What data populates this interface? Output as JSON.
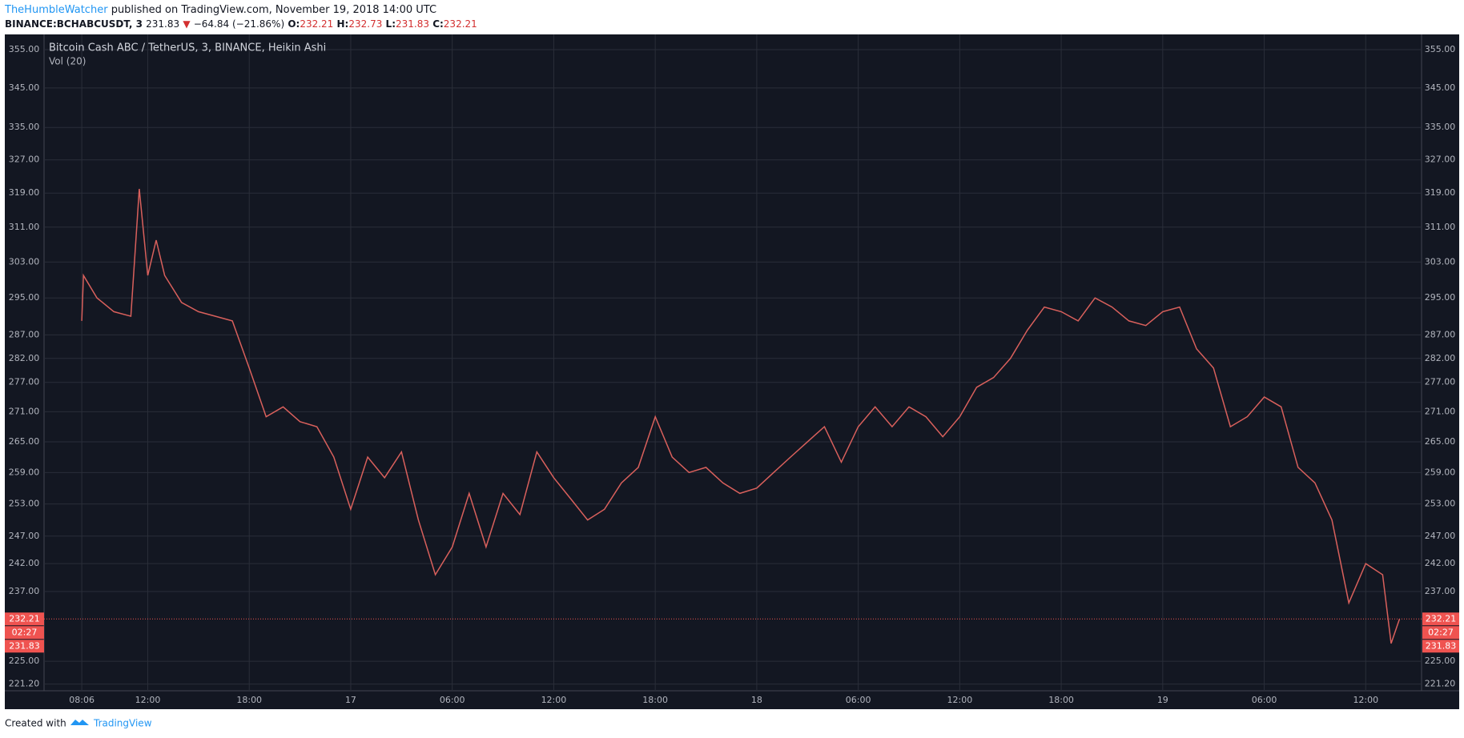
{
  "header": {
    "author": "TheHumbleWatcher",
    "published": "published on TradingView.com, November 19, 2018 14:00 UTC",
    "symbol": "BINANCE:BCHABCUSDT, 3",
    "price": "231.83",
    "arrow": "▼",
    "change": "−64.84 (−21.86%)",
    "o_label": "O:",
    "o": "232.21",
    "h_label": "H:",
    "h": "232.73",
    "l_label": "L:",
    "l": "231.83",
    "c_label": "C:",
    "c": "232.21"
  },
  "footer": {
    "created": "Created with",
    "brand": "TradingView"
  },
  "chart_data": {
    "type": "line",
    "title": "Bitcoin Cash ABC / TetherUS, 3, BINANCE, Heikin Ashi",
    "subtitle": "Vol (20)",
    "log": true,
    "grid": true,
    "xlim": [
      5.87,
      87.3
    ],
    "xticks": [
      {
        "value": 8.1,
        "label": "08:06"
      },
      {
        "value": 12,
        "label": "12:00"
      },
      {
        "value": 18,
        "label": "18:00"
      },
      {
        "value": 24,
        "label": "17"
      },
      {
        "value": 30,
        "label": "06:00"
      },
      {
        "value": 36,
        "label": "12:00"
      },
      {
        "value": 42,
        "label": "18:00"
      },
      {
        "value": 48,
        "label": "18"
      },
      {
        "value": 54,
        "label": "06:00"
      },
      {
        "value": 60,
        "label": "12:00"
      },
      {
        "value": 66,
        "label": "18:00"
      },
      {
        "value": 72,
        "label": "19"
      },
      {
        "value": 78,
        "label": "06:00"
      },
      {
        "value": 84,
        "label": "12:00"
      }
    ],
    "ylim": [
      220.1,
      358.2
    ],
    "yticks": [
      {
        "value": 355,
        "label": "355.00"
      },
      {
        "value": 345,
        "label": "345.00"
      },
      {
        "value": 335,
        "label": "335.00"
      },
      {
        "value": 327,
        "label": "327.00"
      },
      {
        "value": 319,
        "label": "319.00"
      },
      {
        "value": 311,
        "label": "311.00"
      },
      {
        "value": 303,
        "label": "303.00"
      },
      {
        "value": 295,
        "label": "295.00"
      },
      {
        "value": 287,
        "label": "287.00"
      },
      {
        "value": 282,
        "label": "282.00"
      },
      {
        "value": 277,
        "label": "277.00"
      },
      {
        "value": 271,
        "label": "271.00"
      },
      {
        "value": 265,
        "label": "265.00"
      },
      {
        "value": 259,
        "label": "259.00"
      },
      {
        "value": 253,
        "label": "253.00"
      },
      {
        "value": 247,
        "label": "247.00"
      },
      {
        "value": 242,
        "label": "242.00"
      },
      {
        "value": 237,
        "label": "237.00"
      },
      {
        "value": 225,
        "label": "225.00"
      },
      {
        "value": 221.2,
        "label": "221.20"
      }
    ],
    "last_price": 232.21,
    "countdown": "02:27",
    "low_price": 231.83,
    "series": [
      {
        "color": "#d9605c",
        "x": [
          8.1,
          8.2,
          9,
          10,
          11,
          11.5,
          12,
          12.5,
          13,
          14,
          15,
          16,
          17,
          18,
          19,
          20,
          21,
          22,
          23,
          24,
          25,
          26,
          27,
          28,
          29,
          30,
          31,
          32,
          33,
          34,
          35,
          36,
          37,
          38,
          39,
          40,
          41,
          42,
          43,
          44,
          45,
          46,
          47,
          48,
          49,
          50,
          51,
          52,
          53,
          54,
          55,
          56,
          57,
          58,
          59,
          60,
          61,
          62,
          63,
          64,
          65,
          66,
          67,
          68,
          69,
          70,
          71,
          72,
          73,
          74,
          75,
          76,
          77,
          78,
          79,
          80,
          81,
          82,
          83,
          84,
          85,
          85.5,
          86
        ],
        "values": [
          290,
          300,
          295,
          292,
          291,
          320,
          300,
          308,
          300,
          294,
          292,
          291,
          290,
          280,
          270,
          272,
          269,
          268,
          262,
          252,
          262,
          258,
          263,
          250,
          240,
          245,
          255,
          245,
          255,
          251,
          263,
          258,
          254,
          250,
          252,
          257,
          260,
          270,
          262,
          259,
          260,
          257,
          255,
          256,
          259,
          262,
          265,
          268,
          261,
          268,
          272,
          268,
          272,
          270,
          266,
          270,
          276,
          278,
          282,
          288,
          293,
          292,
          290,
          295,
          293,
          290,
          289,
          292,
          293,
          284,
          280,
          268,
          270,
          274,
          272,
          260,
          257,
          250,
          235,
          242,
          240,
          228,
          232.21
        ]
      }
    ]
  }
}
